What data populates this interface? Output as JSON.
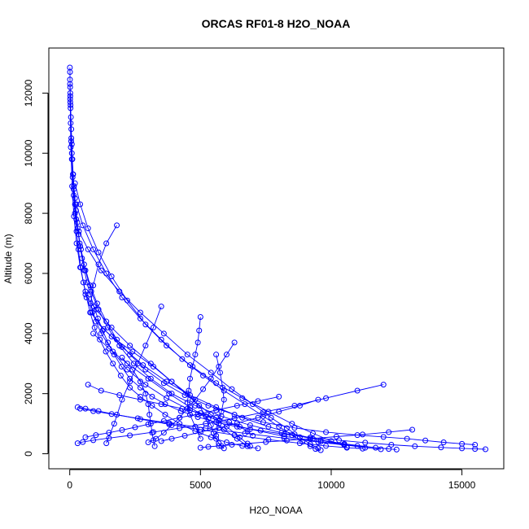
{
  "chart_data": {
    "type": "line",
    "title": "ORCAS RF01-8 H2O_NOAA",
    "xlabel": "H2O_NOAA",
    "ylabel": "Altitude (m)",
    "xlim": [
      -800,
      16600
    ],
    "ylim": [
      -500,
      13500
    ],
    "xticks": [
      0,
      5000,
      10000,
      15000
    ],
    "yticks": [
      0,
      2000,
      4000,
      6000,
      8000,
      10000,
      12000
    ],
    "grid": false,
    "legend": "none",
    "series_color": "#0000ff",
    "marker": "open-circle",
    "series": [
      {
        "x": [
          5,
          10,
          8,
          15,
          20,
          30,
          45,
          60,
          80,
          100,
          130,
          160,
          200,
          240,
          290,
          340,
          400,
          470,
          560,
          660,
          780,
          920,
          1080,
          1260,
          1460,
          1700,
          1980,
          2300,
          2700,
          3150,
          3650,
          4250,
          4900,
          5600,
          6400,
          7300,
          8200,
          9200,
          10300,
          11300,
          12300,
          13200,
          14200,
          15000,
          15500,
          15900
        ],
        "y": [
          12850,
          12700,
          12450,
          12200,
          11900,
          11600,
          11200,
          10800,
          10300,
          9800,
          9300,
          8900,
          8500,
          8100,
          7700,
          7300,
          6900,
          6500,
          6100,
          5700,
          5300,
          4900,
          4500,
          4100,
          3700,
          3300,
          2900,
          2500,
          2200,
          1900,
          1650,
          1420,
          1220,
          1050,
          900,
          770,
          650,
          540,
          450,
          370,
          300,
          250,
          210,
          180,
          160,
          150
        ]
      },
      {
        "x": [
          10,
          20,
          35,
          55,
          80,
          110,
          150,
          200,
          260,
          330,
          420,
          520,
          640,
          780,
          950,
          1150,
          1380,
          1650,
          1950,
          2300,
          2700,
          3150,
          3650,
          4200,
          4800,
          5400,
          6000,
          6600,
          7200
        ],
        "y": [
          12300,
          11700,
          11000,
          10400,
          9800,
          9200,
          8600,
          8000,
          7400,
          6800,
          6200,
          5700,
          5200,
          4700,
          4200,
          3800,
          3400,
          3000,
          2600,
          2200,
          1900,
          1600,
          1300,
          1000,
          750,
          550,
          380,
          260,
          180
        ]
      },
      {
        "x": [
          20,
          60,
          120,
          200,
          300,
          430,
          600,
          820,
          1100,
          1450,
          1900,
          2450,
          3100,
          3900,
          4800,
          5800,
          6900,
          8100,
          9300,
          10500,
          11700,
          12500
        ],
        "y": [
          12000,
          10500,
          9300,
          8300,
          7500,
          6800,
          6100,
          5400,
          4800,
          4200,
          3600,
          3000,
          2500,
          2000,
          1600,
          1250,
          950,
          700,
          500,
          330,
          200,
          140
        ]
      },
      {
        "x": [
          15,
          40,
          90,
          160,
          260,
          400,
          600,
          860,
          1200,
          1650,
          2200,
          2900,
          3700,
          4600,
          5700,
          6900,
          8200,
          9600,
          11000,
          12200
        ],
        "y": [
          11800,
          10200,
          8900,
          7900,
          7000,
          6200,
          5400,
          4700,
          4000,
          3400,
          2800,
          2300,
          1850,
          1450,
          1100,
          820,
          580,
          400,
          260,
          160
        ]
      },
      {
        "x": [
          30,
          80,
          150,
          250,
          380,
          550,
          780,
          1050,
          1400,
          1800,
          2300,
          2900,
          3600,
          4400,
          5300,
          6300,
          7400,
          8600,
          9800,
          11000,
          12000,
          12900,
          13600,
          14300,
          15000,
          15500
        ],
        "y": [
          11500,
          10000,
          8800,
          7800,
          7000,
          6300,
          5600,
          5000,
          4400,
          3800,
          3300,
          2800,
          2350,
          1950,
          1600,
          1300,
          1050,
          860,
          720,
          620,
          560,
          500,
          440,
          380,
          330,
          300
        ]
      },
      {
        "x": [
          300,
          600,
          1100,
          1800,
          2700,
          3800,
          5000,
          6300,
          7600,
          8800,
          9800,
          10600,
          11200
        ],
        "y": [
          1550,
          1500,
          1420,
          1300,
          1150,
          980,
          800,
          620,
          470,
          350,
          260,
          200,
          170
        ]
      },
      {
        "x": [
          400,
          900,
          1600,
          2600,
          3800,
          5200,
          6700,
          8200,
          9500,
          10500
        ],
        "y": [
          1500,
          1420,
          1320,
          1180,
          1020,
          850,
          680,
          520,
          390,
          290
        ]
      },
      {
        "x": [
          1800,
          1400,
          1100,
          900,
          800,
          1000,
          1600,
          2400,
          3200,
          3900,
          4500,
          4950,
          5200,
          5400,
          5500,
          5600,
          5700,
          5800,
          5900
        ],
        "y": [
          7600,
          7000,
          6300,
          5600,
          5000,
          4400,
          3900,
          3400,
          2900,
          2400,
          2000,
          1600,
          1250,
          950,
          700,
          500,
          350,
          250,
          180
        ]
      },
      {
        "x": [
          5000,
          4950,
          4900,
          4800,
          4700,
          4600,
          4550,
          4500,
          4600,
          4800,
          5000
        ],
        "y": [
          4550,
          4100,
          3700,
          3300,
          2900,
          2500,
          2100,
          1700,
          1300,
          900,
          500
        ]
      },
      {
        "x": [
          12000,
          11000,
          9800,
          8600,
          7400,
          6300,
          5200,
          4200,
          3200,
          2300,
          1500,
          900,
          500,
          300
        ],
        "y": [
          2300,
          2100,
          1850,
          1600,
          1380,
          1180,
          1000,
          850,
          720,
          610,
          520,
          450,
          390,
          350
        ]
      },
      {
        "x": [
          3500,
          3200,
          2900,
          2600,
          2300,
          2000,
          1700,
          1400
        ],
        "y": [
          4900,
          4200,
          3600,
          3000,
          2400,
          1800,
          1000,
          350
        ]
      },
      {
        "x": [
          6300,
          6000,
          5700,
          5400,
          5100,
          4800,
          4500,
          4200,
          3900,
          3600,
          3300,
          3000
        ],
        "y": [
          3700,
          3300,
          2900,
          2500,
          2150,
          1800,
          1500,
          1200,
          950,
          700,
          500,
          380
        ]
      },
      {
        "x": [
          8000,
          7200,
          6400,
          5600,
          4900,
          4200,
          3600,
          3000,
          2500,
          2000,
          1500,
          1000,
          600
        ],
        "y": [
          1900,
          1750,
          1600,
          1450,
          1320,
          1200,
          1090,
          980,
          880,
          790,
          700,
          620,
          550
        ]
      },
      {
        "x": [
          9500,
          8800,
          8000,
          7200,
          6400,
          5700,
          5000,
          4400,
          3900,
          3500
        ],
        "y": [
          1800,
          1600,
          1400,
          1200,
          1020,
          860,
          720,
          600,
          500,
          420
        ]
      },
      {
        "x": [
          13100,
          12200,
          11200,
          10200,
          9200,
          8300,
          7500,
          6800,
          6200,
          5700,
          5300,
          5000
        ],
        "y": [
          800,
          720,
          640,
          570,
          500,
          440,
          390,
          340,
          300,
          260,
          230,
          200
        ]
      },
      {
        "x": [
          900,
          1500,
          2200,
          3000,
          3800,
          4600,
          5300,
          5900,
          6400,
          6800
        ],
        "y": [
          4000,
          3500,
          3000,
          2500,
          2000,
          1550,
          1150,
          800,
          500,
          250
        ]
      },
      {
        "x": [
          600,
          1000,
          1600,
          2300,
          3100,
          3900,
          4700,
          5400,
          6000,
          6500,
          6900
        ],
        "y": [
          5300,
          4800,
          4200,
          3600,
          3000,
          2400,
          1800,
          1300,
          900,
          550,
          250
        ]
      },
      {
        "x": [
          350,
          700,
          1200,
          1900,
          2700,
          3600,
          4500,
          5400,
          6200,
          7000,
          7700,
          8300,
          8800,
          9200,
          9500
        ],
        "y": [
          7400,
          6800,
          6100,
          5400,
          4700,
          4000,
          3300,
          2700,
          2150,
          1650,
          1200,
          850,
          550,
          320,
          180
        ]
      },
      {
        "x": [
          250,
          500,
          900,
          1400,
          2000,
          2700,
          3500,
          4300,
          5100,
          5900,
          6700,
          7400,
          8000,
          8500,
          8900,
          9200,
          9400,
          9600
        ],
        "y": [
          8300,
          7600,
          6800,
          6000,
          5200,
          4500,
          3800,
          3150,
          2600,
          2100,
          1650,
          1250,
          900,
          620,
          400,
          250,
          160,
          120
        ]
      },
      {
        "x": [
          800,
          1300,
          2000,
          2800,
          3700,
          4600,
          5600,
          6600,
          7600,
          8600,
          9600,
          10500,
          11300,
          11900
        ],
        "y": [
          4700,
          4150,
          3550,
          2950,
          2400,
          1950,
          1550,
          1200,
          900,
          650,
          450,
          300,
          200,
          150
        ]
      },
      {
        "x": [
          200,
          400,
          700,
          1100,
          1600,
          2200,
          2900,
          3700,
          4600,
          5600,
          6600,
          7600,
          8500,
          9300,
          10000,
          10600
        ],
        "y": [
          9000,
          8300,
          7500,
          6700,
          5900,
          5100,
          4300,
          3600,
          2950,
          2350,
          1850,
          1400,
          1000,
          680,
          420,
          220
        ]
      },
      {
        "x": [
          2000,
          2400,
          2700,
          2900,
          3000,
          3050,
          3100,
          3150,
          3200,
          3250
        ],
        "y": [
          3200,
          2800,
          2400,
          2000,
          1650,
          1300,
          1000,
          700,
          450,
          250
        ]
      },
      {
        "x": [
          5600,
          5750,
          5850,
          5900,
          5800,
          5700,
          5600
        ],
        "y": [
          3300,
          2700,
          2200,
          1800,
          1400,
          1000,
          600
        ]
      },
      {
        "x": [
          700,
          1200,
          1900,
          2700,
          3500,
          4300,
          5000,
          5600,
          6100,
          6500,
          6800,
          7000
        ],
        "y": [
          2300,
          2100,
          1950,
          1800,
          1650,
          1500,
          1350,
          1200,
          1050,
          900,
          750,
          600
        ]
      }
    ]
  }
}
